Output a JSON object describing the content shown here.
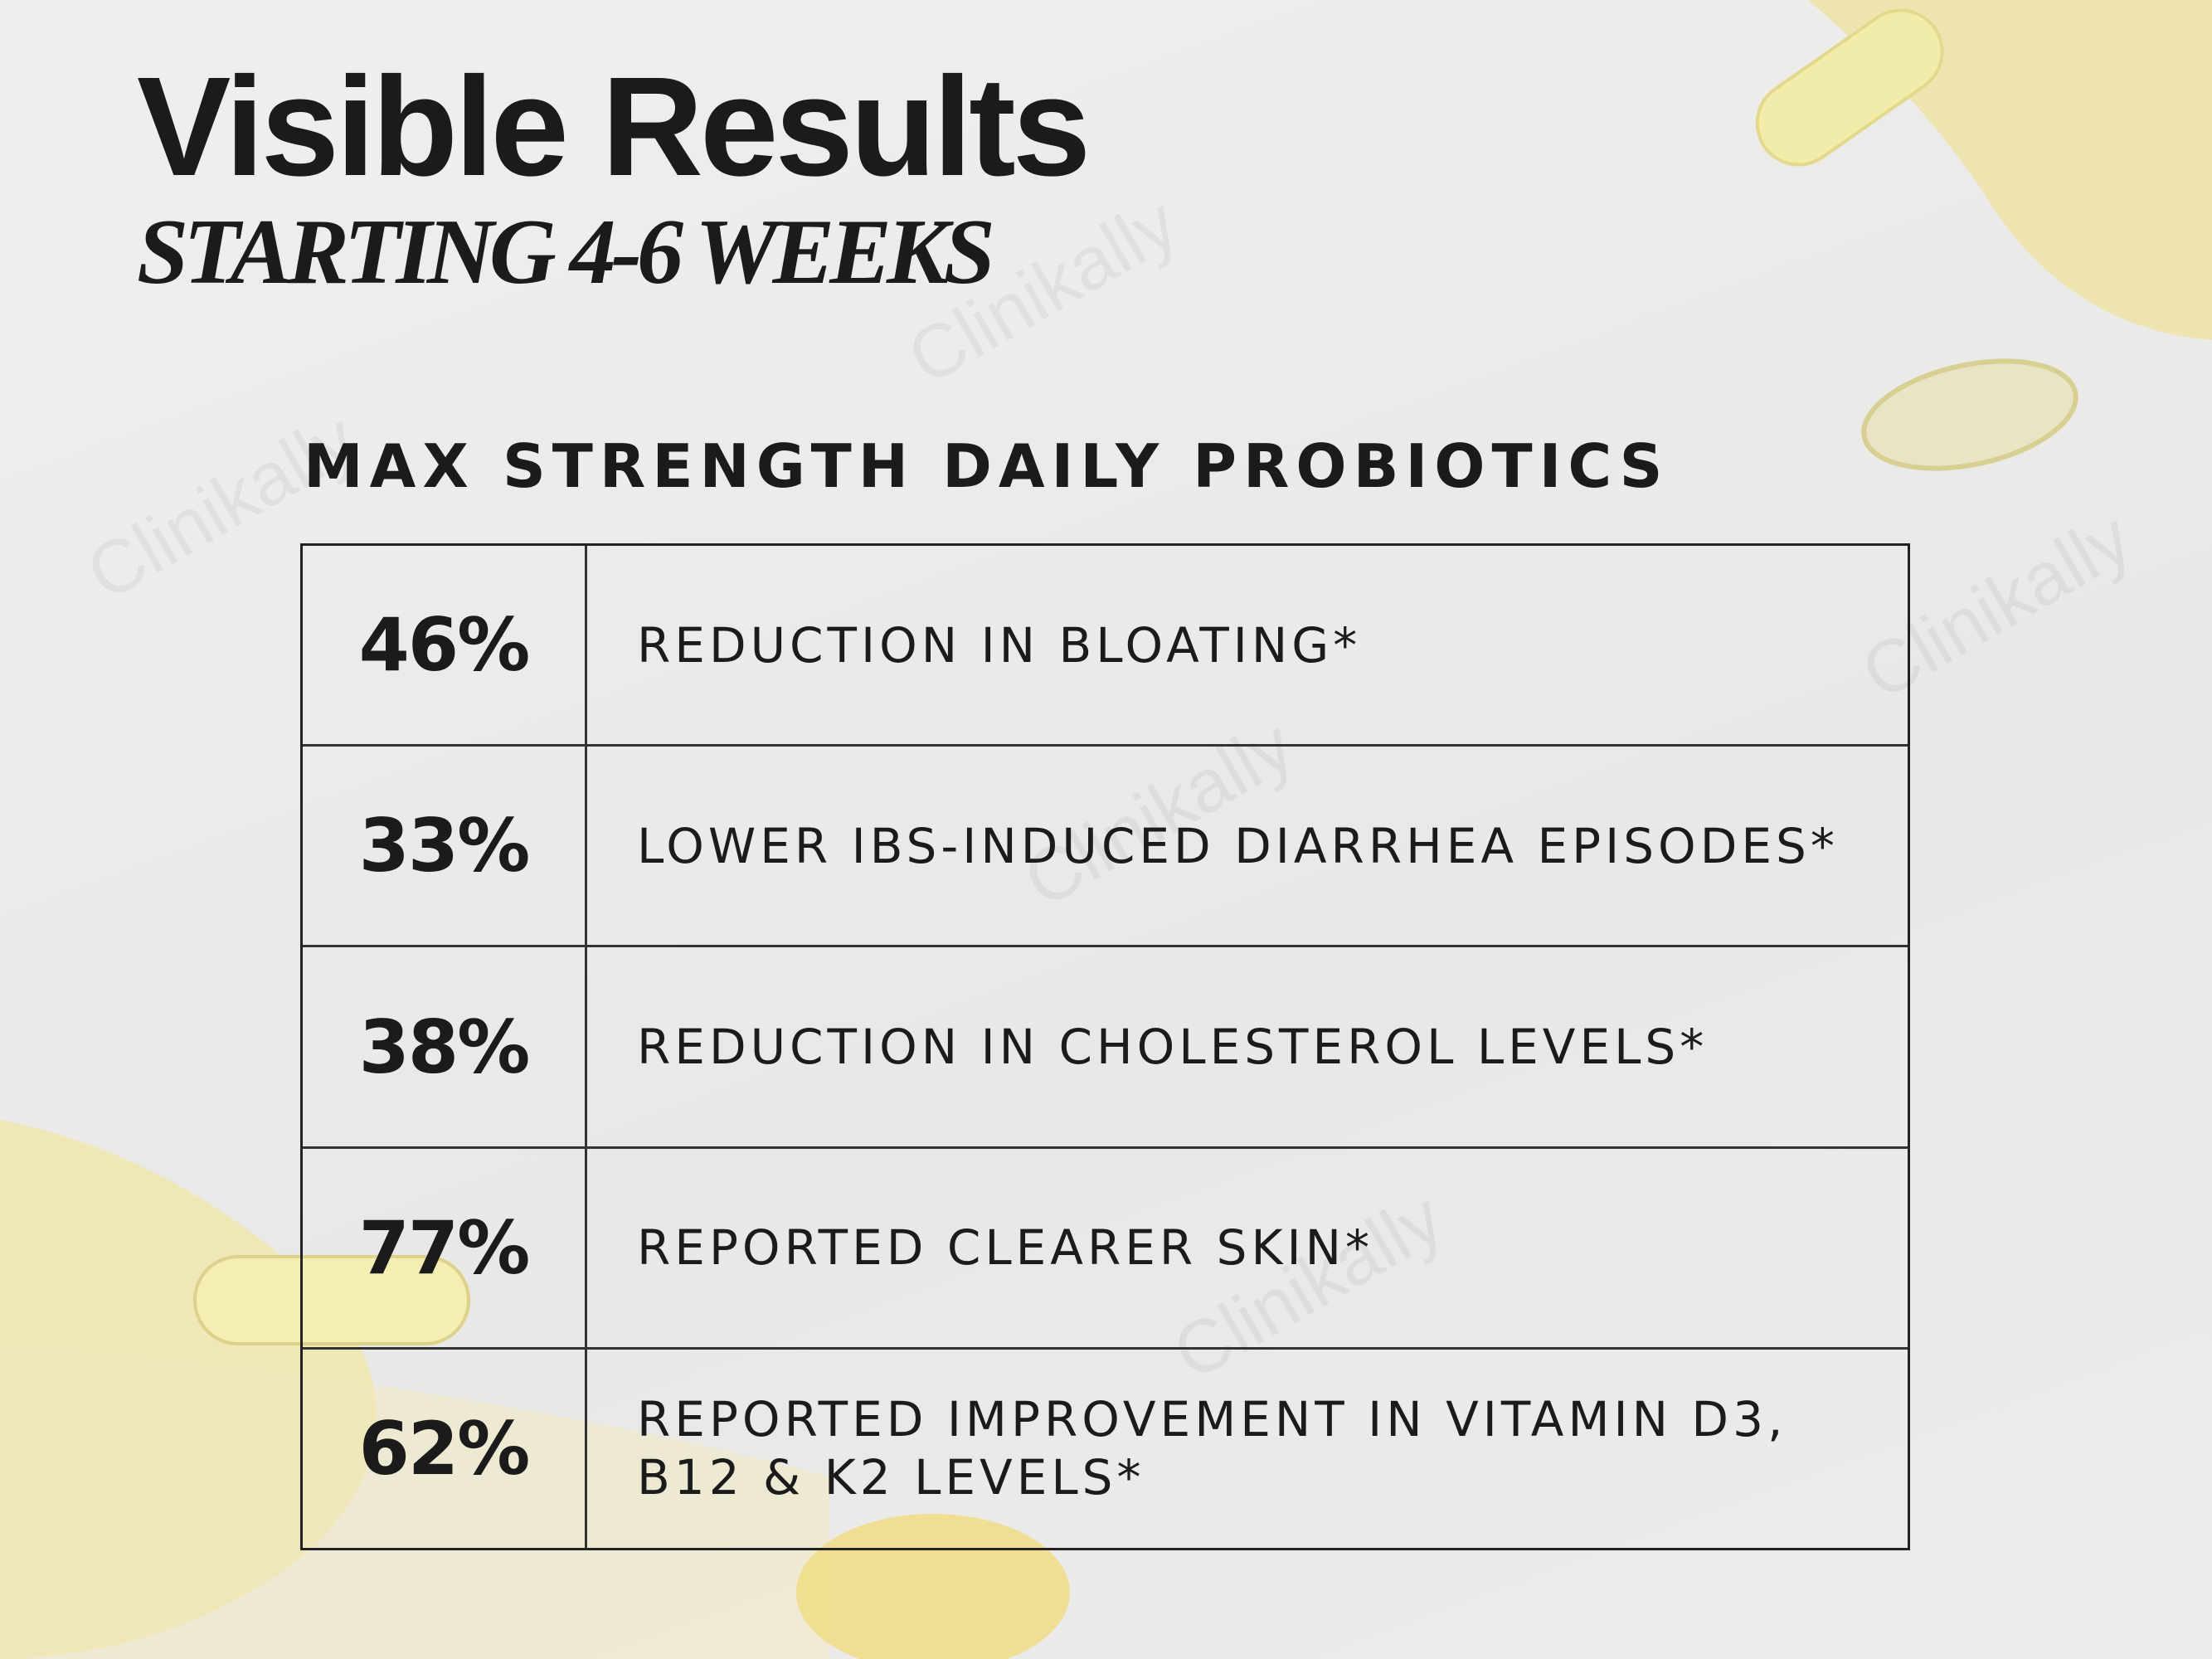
{
  "header": {
    "title": "Visible Results",
    "subtitle": "STARTING 4-6 WEEKS"
  },
  "watermark": "Clinikally",
  "table": {
    "title": "MAX STRENGTH DAILY PROBIOTICS",
    "rows": [
      [
        "46%",
        "REDUCTION IN BLOATING*"
      ],
      [
        "33%",
        "LOWER IBS-INDUCED DIARRHEA EPISODES*"
      ],
      [
        "38%",
        "REDUCTION IN CHOLESTEROL LEVELS*"
      ],
      [
        "77%",
        "REPORTED CLEARER SKIN*"
      ],
      [
        "62%",
        "REPORTED IMPROVEMENT IN VITAMIN D3, B12 & K2 LEVELS*"
      ]
    ]
  }
}
